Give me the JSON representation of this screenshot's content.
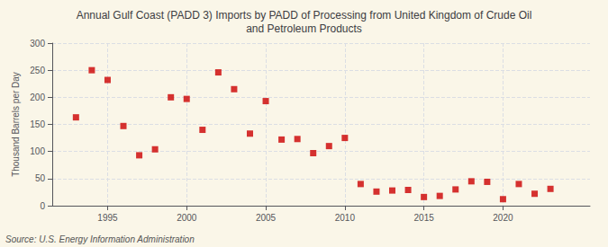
{
  "chart_data": {
    "type": "scatter",
    "title": "Annual Gulf Coast (PADD 3) Imports by PADD of Processing from United Kingdom of Crude Oil\nand Petroleum Products",
    "ylabel": "Thousand Barrels per Day",
    "annotation": "Source: U.S. Energy Information Administration",
    "x": [
      1993,
      1994,
      1995,
      1996,
      1997,
      1998,
      1999,
      2000,
      2001,
      2002,
      2003,
      2004,
      2005,
      2006,
      2007,
      2008,
      2009,
      2010,
      2011,
      2012,
      2013,
      2014,
      2015,
      2016,
      2017,
      2018,
      2019,
      2020,
      2021,
      2022,
      2023
    ],
    "values": [
      163,
      250,
      232,
      147,
      93,
      104,
      200,
      197,
      140,
      246,
      215,
      133,
      193,
      122,
      123,
      97,
      110,
      125,
      40,
      26,
      28,
      29,
      16,
      18,
      30,
      45,
      44,
      12,
      40,
      22,
      31
    ],
    "color": "#cc0000",
    "marker": "square",
    "xlim": [
      1991.5,
      2025.5
    ],
    "ylim": [
      0,
      300
    ],
    "xticks": [
      1995,
      2000,
      2005,
      2010,
      2015,
      2020
    ],
    "yticks": [
      0,
      50,
      100,
      150,
      200,
      250,
      300
    ],
    "grid": true
  }
}
